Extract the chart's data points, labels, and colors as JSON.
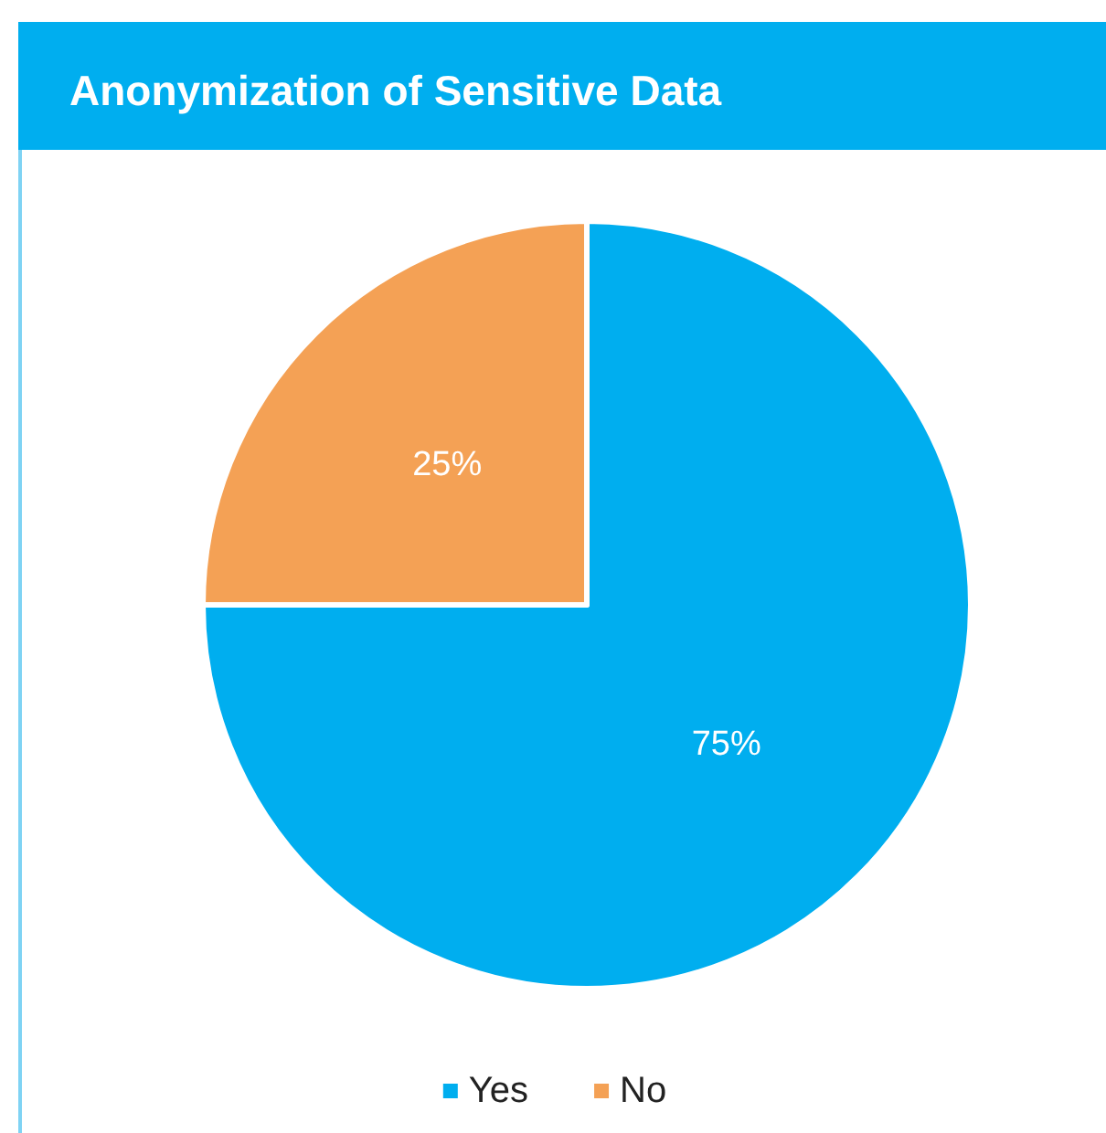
{
  "chart_data": {
    "type": "pie",
    "title": "Anonymization of Sensitive Data",
    "categories": [
      "Yes",
      "No"
    ],
    "values": [
      75,
      25
    ],
    "colors": [
      "#00aeef",
      "#f4a155"
    ],
    "value_labels": [
      "75%",
      "25%"
    ],
    "legend": "bottom"
  }
}
